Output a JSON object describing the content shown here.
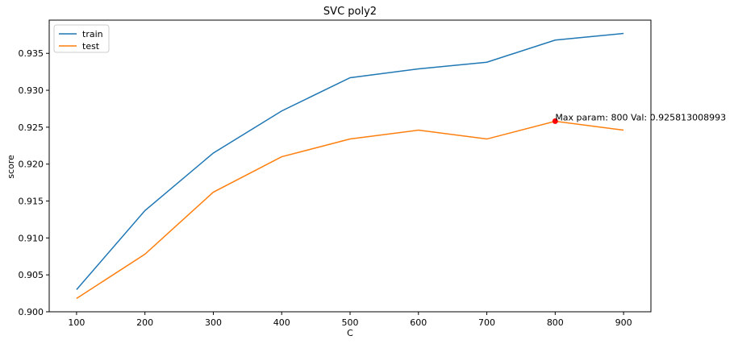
{
  "chart_data": {
    "type": "line",
    "title": "SVC poly2",
    "xlabel": "C",
    "ylabel": "score",
    "x": [
      100,
      200,
      300,
      400,
      500,
      600,
      700,
      800,
      900
    ],
    "xticks": [
      100,
      200,
      300,
      400,
      500,
      600,
      700,
      800,
      900
    ],
    "xlim": [
      60,
      940
    ],
    "yticks": [
      "0.900",
      "0.905",
      "0.910",
      "0.915",
      "0.920",
      "0.925",
      "0.930",
      "0.935"
    ],
    "ylim": [
      0.9,
      0.9395
    ],
    "grid": false,
    "legend_position": "top-left",
    "series": [
      {
        "name": "train",
        "color": "#1f77b4",
        "values": [
          0.903,
          0.9137,
          0.9215,
          0.9272,
          0.9317,
          0.9329,
          0.9338,
          0.9368,
          0.9377
        ]
      },
      {
        "name": "test",
        "color": "#ff7f0e",
        "values": [
          0.9018,
          0.9078,
          0.9162,
          0.921,
          0.9234,
          0.9246,
          0.9234,
          0.9258,
          0.9246
        ]
      }
    ],
    "max_point": {
      "x": 800,
      "y": 0.925813008993,
      "color": "#ff0000",
      "label": "Max param: 800 Val: 0.925813008993"
    }
  }
}
